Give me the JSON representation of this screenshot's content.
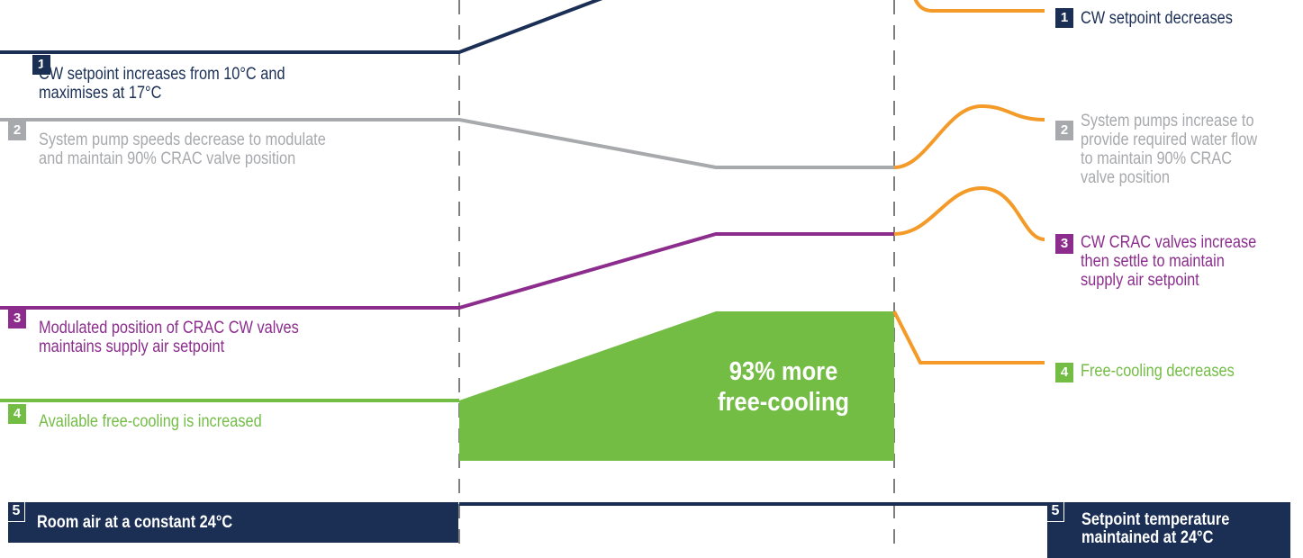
{
  "colors": {
    "navy": "#1b2f55",
    "grey": "#a7a9ac",
    "purple": "#8c2d8e",
    "green": "#73bd45",
    "orange": "#f39a28",
    "divider": "#7f7f7f"
  },
  "left": {
    "item1": {
      "num": "1",
      "text_l1": "CW setpoint increases from 10°C and",
      "text_l2": "maximises at 17°C"
    },
    "item2": {
      "num": "2",
      "text_l1": "System pump speeds decrease to modulate",
      "text_l2": "and maintain 90% CRAC valve position"
    },
    "item3": {
      "num": "3",
      "text_l1": "Modulated position of CRAC CW valves",
      "text_l2": "maintains supply air setpoint"
    },
    "item4": {
      "num": "4",
      "text_l1": "Available free-cooling is increased"
    },
    "item5": {
      "num": "5",
      "text": "Room air at a constant 24°C"
    }
  },
  "right": {
    "item1": {
      "num": "1",
      "text_l1": "CW setpoint decreases"
    },
    "item2": {
      "num": "2",
      "text_l1": "System pumps increase to",
      "text_l2": "provide required water flow",
      "text_l3": "to maintain 90% CRAC",
      "text_l4": "valve position"
    },
    "item3": {
      "num": "3",
      "text_l1": "CW CRAC valves increase",
      "text_l2": "then settle to maintain",
      "text_l3": "supply air setpoint"
    },
    "item4": {
      "num": "4",
      "text_l1": "Free-cooling decreases"
    },
    "item5": {
      "num": "5",
      "text_l1": "Setpoint temperature",
      "text_l2": "maintained at 24°C"
    }
  },
  "callout": {
    "line1": "93% more",
    "line2": "free-cooling"
  }
}
